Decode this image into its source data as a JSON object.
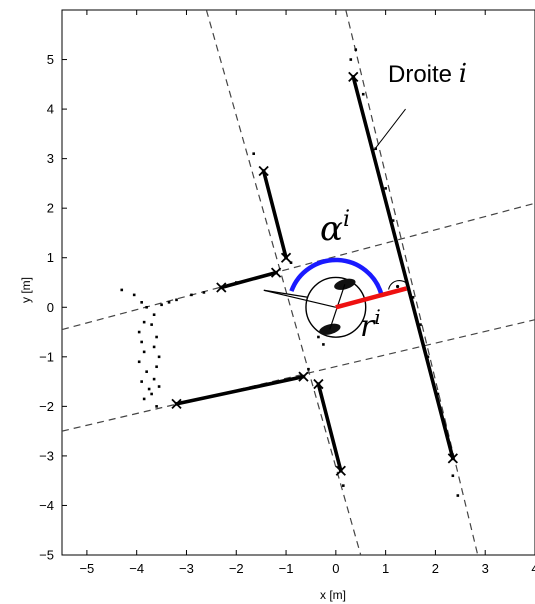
{
  "chart_data": {
    "type": "scatter",
    "xlabel": "x [m]",
    "ylabel": "y [m]",
    "xlim": [
      -5.5,
      4.0
    ],
    "ylim": [
      -5.0,
      6.0
    ],
    "xticks": [
      "-5",
      "-4",
      "-3",
      "-2",
      "-1",
      "0",
      "1",
      "2",
      "3",
      "4"
    ],
    "yticks": [
      "5",
      "4",
      "3",
      "2",
      "1",
      "0",
      "-1",
      "-2",
      "-3",
      "-4",
      "-5"
    ],
    "grid": false,
    "dashed_lines": [
      {
        "x1": -2.6,
        "y1": 6.0,
        "x2": 0.5,
        "y2": -5.0
      },
      {
        "x1": 0.2,
        "y1": 6.0,
        "x2": 2.85,
        "y2": -5.0
      },
      {
        "x1": -5.5,
        "y1": -0.45,
        "x2": 4.0,
        "y2": 2.1
      },
      {
        "x1": -5.5,
        "y1": -2.5,
        "x2": 4.0,
        "y2": -0.25
      }
    ],
    "segments": [
      {
        "x1": 0.35,
        "y1": 4.65,
        "x2": 2.35,
        "y2": -3.05
      },
      {
        "x1": -1.45,
        "y1": 2.75,
        "x2": -1.0,
        "y2": 1.0
      },
      {
        "x1": -2.3,
        "y1": 0.4,
        "x2": -1.2,
        "y2": 0.7
      },
      {
        "x1": -3.2,
        "y1": -1.95,
        "x2": -0.65,
        "y2": -1.4
      },
      {
        "x1": -0.35,
        "y1": -1.55,
        "x2": 0.1,
        "y2": -3.3
      }
    ],
    "endpoints": [
      [
        0.35,
        4.65
      ],
      [
        2.35,
        -3.05
      ],
      [
        -1.45,
        2.75
      ],
      [
        -1.0,
        1.0
      ],
      [
        -2.3,
        0.4
      ],
      [
        -1.2,
        0.7
      ],
      [
        -3.2,
        -1.95
      ],
      [
        -0.65,
        -1.4
      ],
      [
        -0.35,
        -1.55
      ],
      [
        0.1,
        -3.3
      ]
    ],
    "scan_points": [
      [
        -4.3,
        0.35
      ],
      [
        -4.05,
        0.25
      ],
      [
        -3.9,
        0.1
      ],
      [
        -3.8,
        0.0
      ],
      [
        -3.85,
        -0.3
      ],
      [
        -3.95,
        -0.5
      ],
      [
        -3.9,
        -0.7
      ],
      [
        -3.85,
        -0.9
      ],
      [
        -3.95,
        -1.1
      ],
      [
        -3.8,
        -1.3
      ],
      [
        -3.9,
        -1.5
      ],
      [
        -3.75,
        -1.65
      ],
      [
        -3.85,
        -1.85
      ],
      [
        -3.6,
        -2.0
      ],
      [
        -3.7,
        -1.75
      ],
      [
        -3.55,
        -1.6
      ],
      [
        -3.65,
        -1.45
      ],
      [
        -3.6,
        -1.2
      ],
      [
        -3.55,
        -1.0
      ],
      [
        -3.65,
        -0.8
      ],
      [
        -3.6,
        -0.6
      ],
      [
        -3.7,
        -0.35
      ],
      [
        -3.65,
        -0.15
      ],
      [
        -3.5,
        0.05
      ],
      [
        -3.35,
        0.1
      ],
      [
        -3.2,
        0.15
      ],
      [
        -2.9,
        0.25
      ],
      [
        -2.65,
        0.3
      ],
      [
        -2.0,
        0.5
      ],
      [
        -1.75,
        0.55
      ],
      [
        0.4,
        5.2
      ],
      [
        0.3,
        5.0
      ],
      [
        0.55,
        4.3
      ],
      [
        0.8,
        3.2
      ],
      [
        1.0,
        2.4
      ],
      [
        1.15,
        1.75
      ],
      [
        1.35,
        0.8
      ],
      [
        1.55,
        0.2
      ],
      [
        1.7,
        -0.35
      ],
      [
        1.85,
        -1.0
      ],
      [
        2.05,
        -1.75
      ],
      [
        2.2,
        -2.4
      ],
      [
        2.35,
        -3.4
      ],
      [
        2.45,
        -3.8
      ],
      [
        -0.35,
        -0.6
      ],
      [
        -0.25,
        -0.75
      ],
      [
        0.15,
        -3.6
      ],
      [
        -0.55,
        -1.25
      ],
      [
        -1.65,
        3.1
      ],
      [
        -0.9,
        0.9
      ]
    ],
    "robot": {
      "x": 0.0,
      "y": 0.0,
      "radius_m": 0.6,
      "heading_deg": 160
    },
    "alpha_arc": {
      "center_x": 0.0,
      "center_y": 0.0,
      "radius_m": 0.95,
      "from_deg": 15,
      "to_deg": 160,
      "color": "#1a1aff"
    },
    "r_segment": {
      "x1": 0.0,
      "y1": 0.0,
      "x2": 1.42,
      "y2": 0.38,
      "color": "#ee1111"
    },
    "right_angle_mark": {
      "x": 1.18,
      "y": 0.48
    },
    "annotations": {
      "droite_label": "Droite ",
      "droite_symbol": "i",
      "alpha_label": "α",
      "alpha_sup": "i",
      "r_label": "r",
      "r_sup": "i"
    },
    "leader_line": {
      "x1": 0.75,
      "y1": 3.15,
      "x2": 1.4,
      "y2": 4.0
    }
  }
}
